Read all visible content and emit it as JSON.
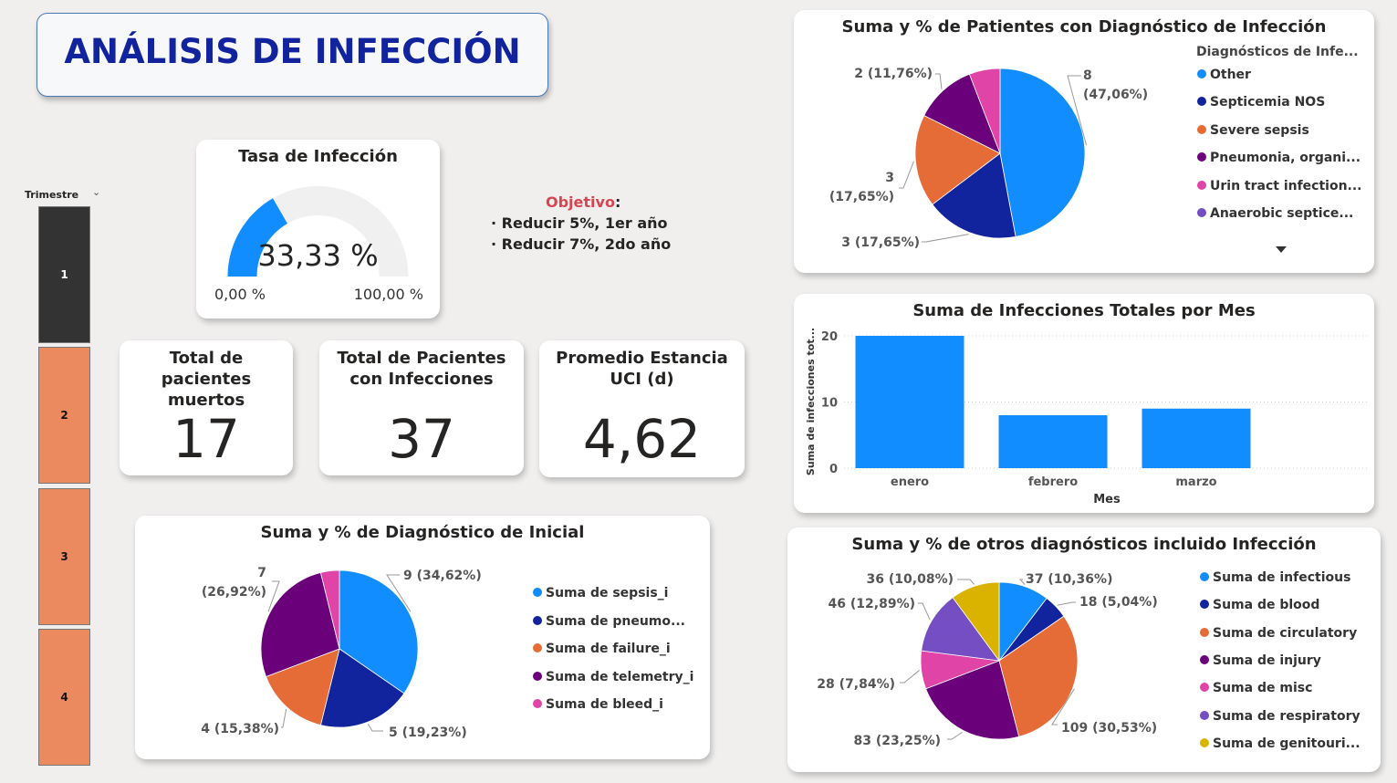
{
  "title": "ANÁLISIS DE INFECCIÓN",
  "slicer": {
    "label": "Trimestre",
    "items": [
      {
        "label": "1",
        "selected": true
      },
      {
        "label": "2",
        "selected": false
      },
      {
        "label": "3",
        "selected": false
      },
      {
        "label": "4",
        "selected": false
      }
    ],
    "colors": {
      "selected": "#333333",
      "unselected": "#ec8a5f"
    }
  },
  "gauge": {
    "title": "Tasa de Infección",
    "value_label": "33,33 %",
    "value": 33.33,
    "min_label": "0,00 %",
    "max_label": "100,00 %",
    "min": 0,
    "max": 100,
    "color": "#118dff"
  },
  "objective": {
    "label": "Objetivo",
    "colon": ":",
    "items": [
      "· Reducir 5%, 1er año",
      "· Reducir 7%, 2do año"
    ]
  },
  "kpis": [
    {
      "title": "Total de pacientes muertos",
      "value": "17"
    },
    {
      "title": "Total de Pacientes con Infecciones",
      "value": "37"
    },
    {
      "title": "Promedio Estancia UCI (d)",
      "value": "4,62"
    }
  ],
  "chart_data": [
    {
      "type": "pie",
      "title": "Suma y % de Patientes con Diagnóstico de Infección",
      "legend_title": "Diagnósticos de Infe...",
      "legend_position": "right",
      "slices": [
        {
          "name": "Other",
          "value": 8,
          "label": "8 (47,06%)",
          "color": "#118dff"
        },
        {
          "name": "Septicemia NOS",
          "value": 3,
          "label": "3 (17,65%)",
          "color": "#12239e"
        },
        {
          "name": "Severe sepsis",
          "value": 3,
          "label": "3 (17,65%)",
          "color": "#e66c37"
        },
        {
          "name": "Pneumonia, organi...",
          "value": 2,
          "label": "2 (11,76%)",
          "color": "#6b007b"
        },
        {
          "name": "Urin tract infection...",
          "value": 1,
          "label": "",
          "color": "#e044a7"
        },
        {
          "name": "Anaerobic septice...",
          "value": 0,
          "label": "",
          "color": "#744ec2"
        }
      ]
    },
    {
      "type": "bar",
      "title": "Suma de Infecciones Totales por Mes",
      "categories": [
        "enero",
        "febrero",
        "marzo"
      ],
      "values": [
        20,
        8,
        9
      ],
      "xlabel": "Mes",
      "ylabel": "Suma de infecciones tot...",
      "ylim": [
        0,
        20
      ],
      "yticks": [
        0,
        10,
        20
      ],
      "grid": true,
      "color": "#118dff"
    },
    {
      "type": "pie",
      "title": "Suma y % de Diagnóstico de Inicial",
      "legend_position": "right",
      "slices": [
        {
          "name": "Suma de sepsis_i",
          "value": 9,
          "label": "9 (34,62%)",
          "color": "#118dff"
        },
        {
          "name": "Suma de pneumo...",
          "value": 5,
          "label": "5 (19,23%)",
          "color": "#12239e"
        },
        {
          "name": "Suma de failure_i",
          "value": 4,
          "label": "4 (15,38%)",
          "color": "#e66c37"
        },
        {
          "name": "Suma de telemetry_i",
          "value": 7,
          "label": "7 (26,92%)",
          "color": "#6b007b"
        },
        {
          "name": "Suma de bleed_i",
          "value": 1,
          "label": "",
          "color": "#e044a7"
        }
      ]
    },
    {
      "type": "pie",
      "title": "Suma y % de otros diagnósticos incluido Infección",
      "legend_position": "right",
      "slices": [
        {
          "name": "Suma de infectious",
          "value": 37,
          "label": "37 (10,36%)",
          "color": "#118dff"
        },
        {
          "name": "Suma de blood",
          "value": 18,
          "label": "18 (5,04%)",
          "color": "#12239e"
        },
        {
          "name": "Suma de circulatory",
          "value": 109,
          "label": "109 (30,53%)",
          "color": "#e66c37"
        },
        {
          "name": "Suma de injury",
          "value": 83,
          "label": "83 (23,25%)",
          "color": "#6b007b"
        },
        {
          "name": "Suma de misc",
          "value": 28,
          "label": "28 (7,84%)",
          "color": "#e044a7"
        },
        {
          "name": "Suma de respiratory",
          "value": 46,
          "label": "46 (12,89%)",
          "color": "#744ec2"
        },
        {
          "name": "Suma de genitouri...",
          "value": 36,
          "label": "36 (10,08%)",
          "color": "#d9b300"
        }
      ]
    }
  ]
}
